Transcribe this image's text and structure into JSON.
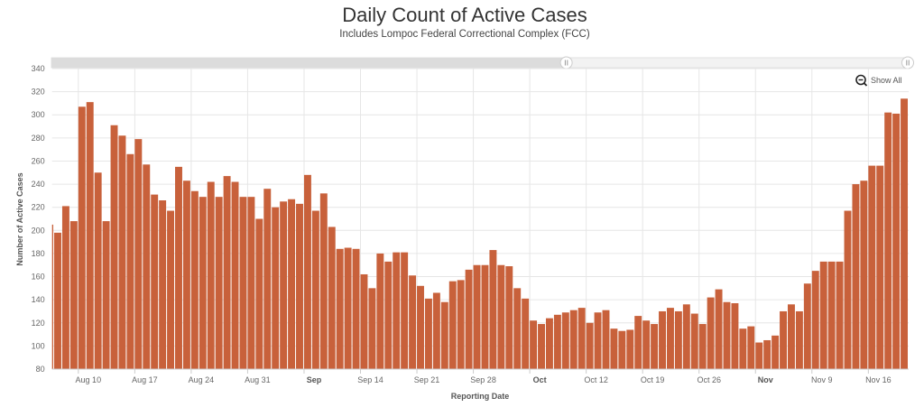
{
  "chart_data": {
    "type": "bar",
    "title": "Daily Count of Active Cases",
    "subtitle": "Includes Lompoc Federal Correctional Complex (FCC)",
    "xlabel": "Reporting Date",
    "ylabel": "Number of Active Cases",
    "ylim": [
      80,
      340
    ],
    "yticks": [
      80,
      100,
      120,
      140,
      160,
      180,
      200,
      220,
      240,
      260,
      280,
      300,
      320,
      340
    ],
    "xrange": [
      "2020-08-06",
      "2020-11-20"
    ],
    "xticks": [
      {
        "date": "2020-08-10",
        "label": "Aug 10",
        "bold": false
      },
      {
        "date": "2020-08-17",
        "label": "Aug 17",
        "bold": false
      },
      {
        "date": "2020-08-24",
        "label": "Aug 24",
        "bold": false
      },
      {
        "date": "2020-08-31",
        "label": "Aug 31",
        "bold": false
      },
      {
        "date": "2020-09-07",
        "label": "Sep",
        "bold": true
      },
      {
        "date": "2020-09-14",
        "label": "Sep 14",
        "bold": false
      },
      {
        "date": "2020-09-21",
        "label": "Sep 21",
        "bold": false
      },
      {
        "date": "2020-09-28",
        "label": "Sep 28",
        "bold": false
      },
      {
        "date": "2020-10-05",
        "label": "Oct",
        "bold": true
      },
      {
        "date": "2020-10-12",
        "label": "Oct 12",
        "bold": false
      },
      {
        "date": "2020-10-19",
        "label": "Oct 19",
        "bold": false
      },
      {
        "date": "2020-10-26",
        "label": "Oct 26",
        "bold": false
      },
      {
        "date": "2020-11-02",
        "label": "Nov",
        "bold": true
      },
      {
        "date": "2020-11-09",
        "label": "Nov 9",
        "bold": false
      },
      {
        "date": "2020-11-16",
        "label": "Nov 16",
        "bold": false
      }
    ],
    "grid": true,
    "legend": "none",
    "bar_color": "#c8613b",
    "start_date": "2020-08-06",
    "values": [
      205,
      198,
      221,
      208,
      307,
      311,
      250,
      208,
      291,
      282,
      266,
      279,
      257,
      231,
      226,
      217,
      255,
      243,
      234,
      229,
      242,
      229,
      247,
      242,
      229,
      229,
      210,
      236,
      220,
      225,
      227,
      223,
      248,
      217,
      232,
      203,
      184,
      185,
      184,
      162,
      150,
      180,
      173,
      181,
      181,
      161,
      152,
      141,
      146,
      138,
      156,
      157,
      166,
      170,
      170,
      183,
      170,
      169,
      150,
      141,
      122,
      119,
      124,
      127,
      129,
      131,
      133,
      120,
      129,
      131,
      115,
      113,
      114,
      126,
      122,
      119,
      130,
      133,
      130,
      136,
      128,
      119,
      142,
      149,
      138,
      137,
      115,
      117,
      103,
      105,
      109,
      130,
      136,
      130,
      154,
      165,
      173,
      173,
      173,
      217,
      240,
      243,
      256,
      256,
      302,
      301,
      314
    ]
  },
  "controls": {
    "show_all_label": "Show All",
    "zoom_icon": "zoom-out-icon",
    "navigator_range_fraction": [
      0.6,
      1.0
    ]
  }
}
